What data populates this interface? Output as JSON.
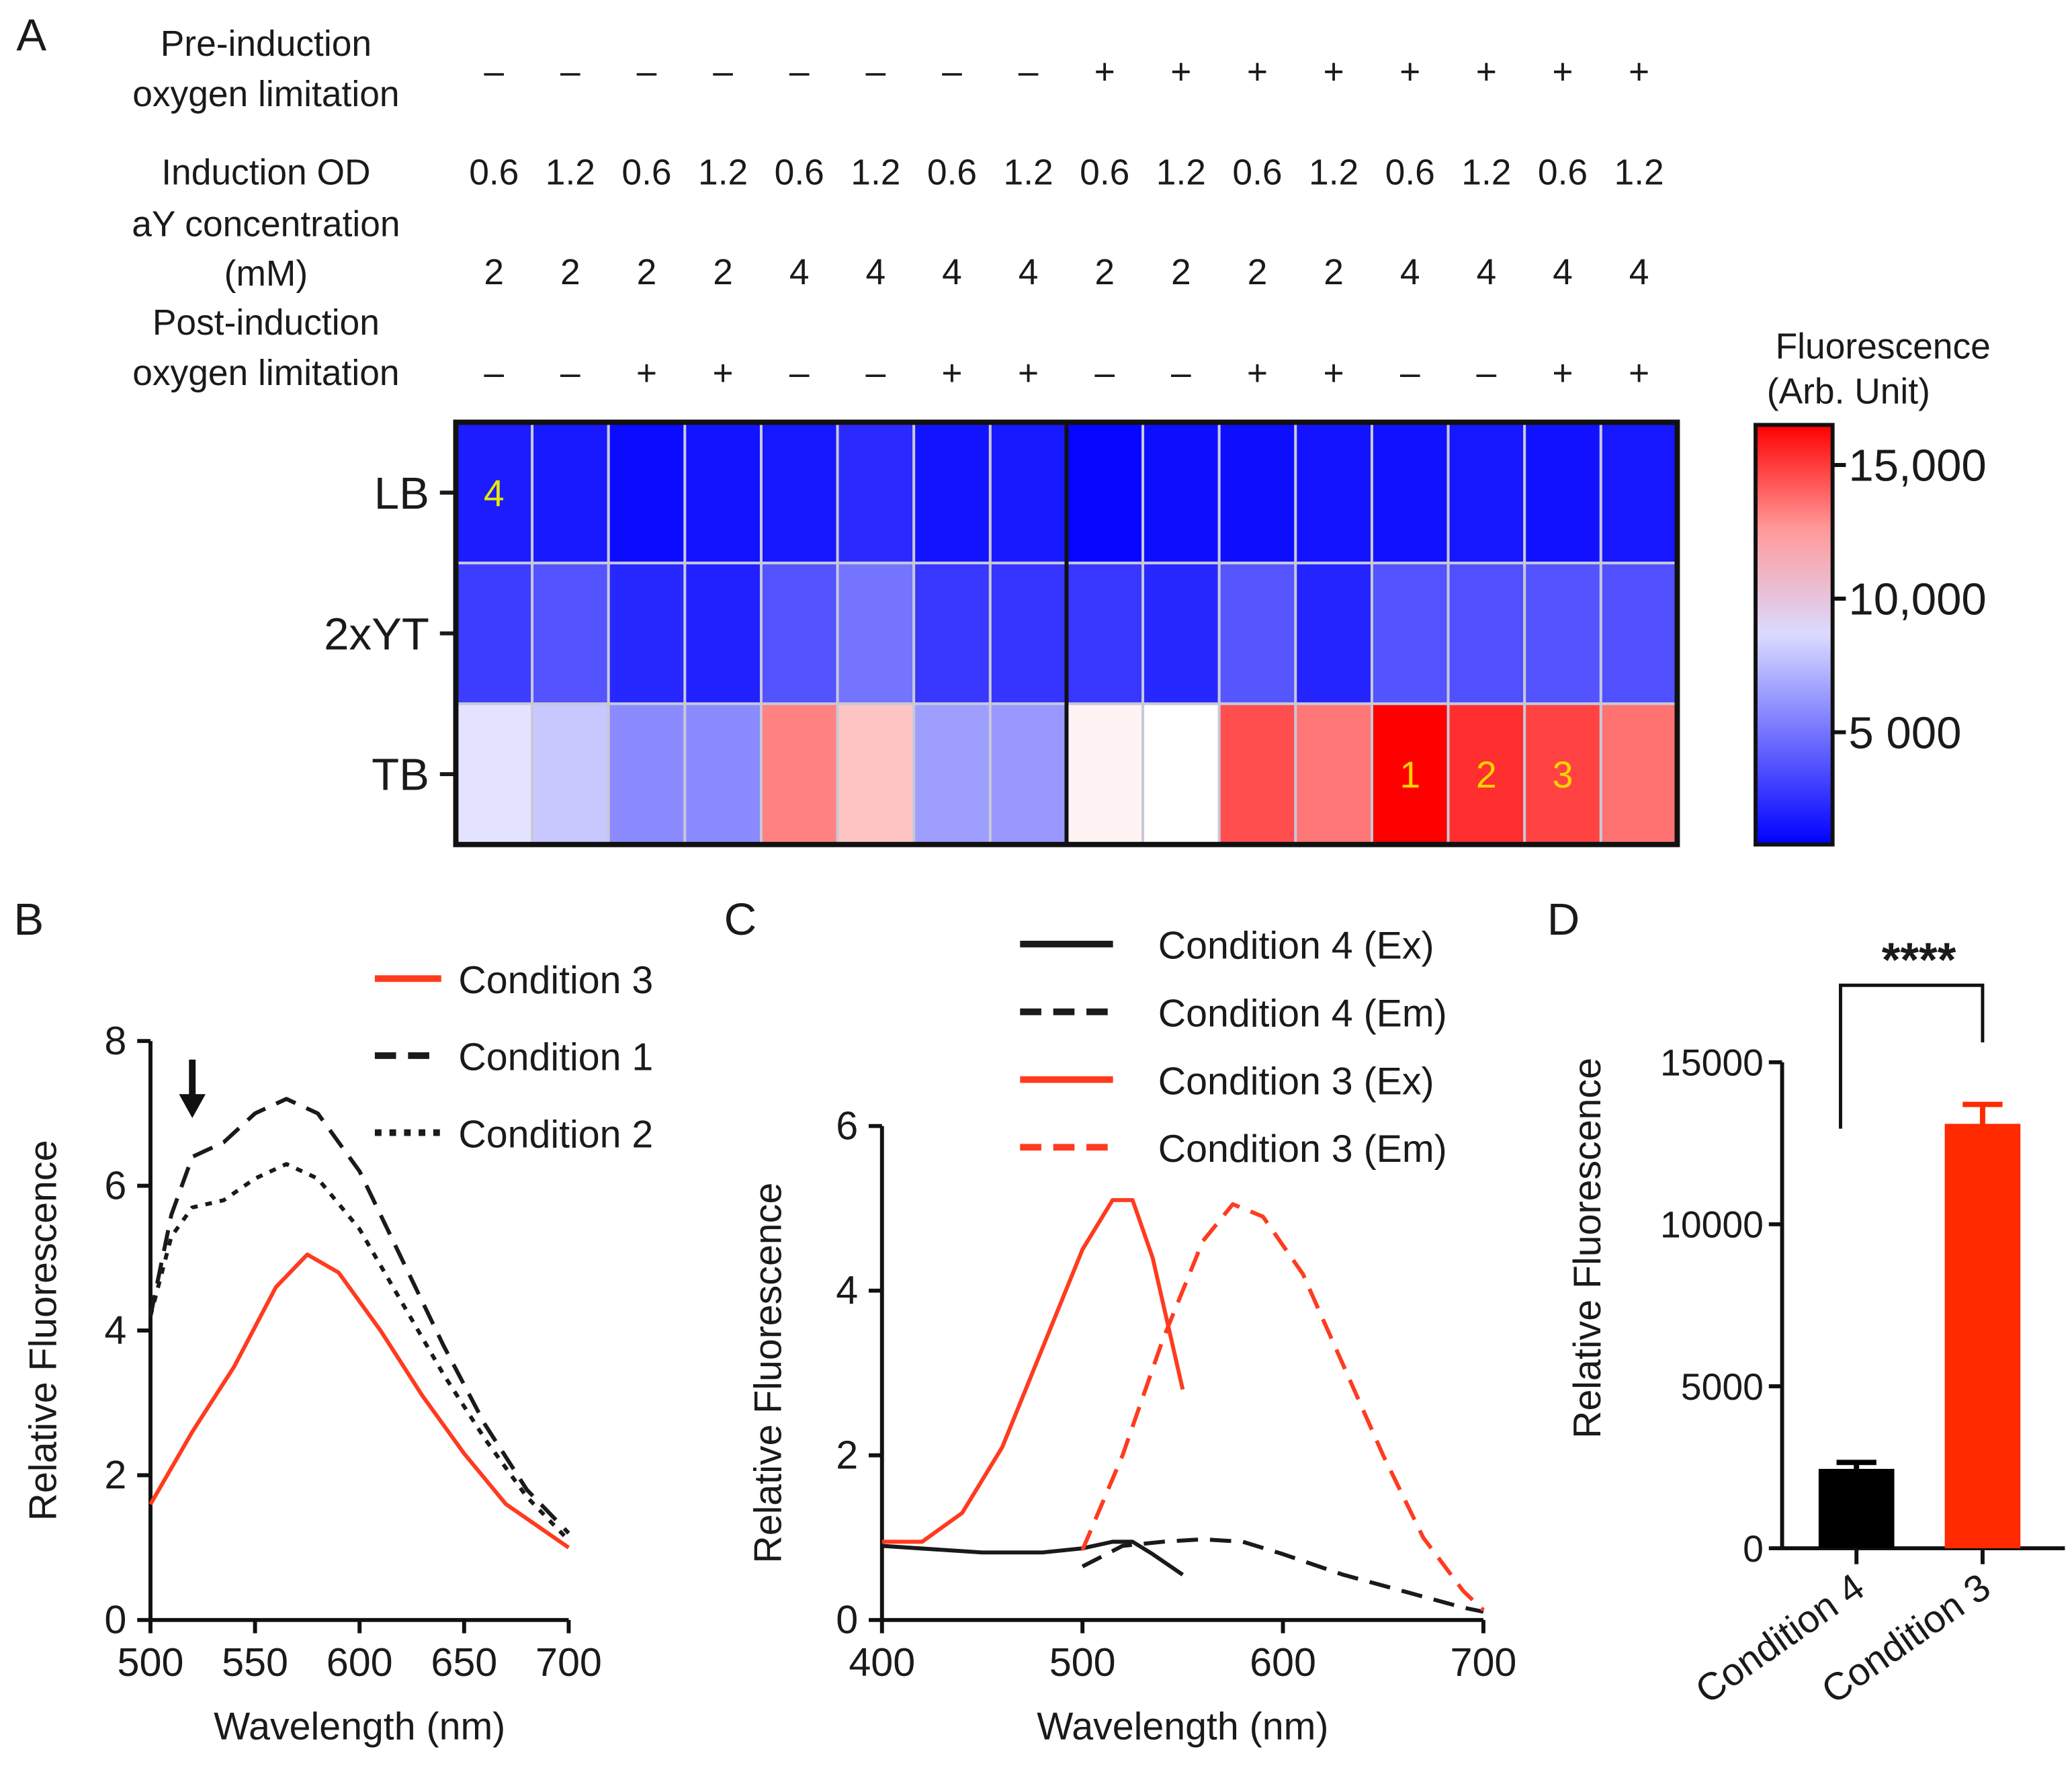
{
  "chart_data": [
    {
      "panel": "A",
      "type": "heatmap",
      "row_header_labels": {
        "pre_induction": [
          "Pre-induction",
          "oxygen limitation"
        ],
        "induction_od": "Induction OD",
        "ay_conc": [
          "aY concentration",
          "(mM)"
        ],
        "post_induction": [
          "Post-induction",
          "oxygen limitation"
        ]
      },
      "pre_induction": [
        "–",
        "–",
        "–",
        "–",
        "–",
        "–",
        "–",
        "–",
        "+",
        "+",
        "+",
        "+",
        "+",
        "+",
        "+",
        "+"
      ],
      "induction_od": [
        "0.6",
        "1.2",
        "0.6",
        "1.2",
        "0.6",
        "1.2",
        "0.6",
        "1.2",
        "0.6",
        "1.2",
        "0.6",
        "1.2",
        "0.6",
        "1.2",
        "0.6",
        "1.2"
      ],
      "ay_conc": [
        "2",
        "2",
        "2",
        "2",
        "4",
        "4",
        "4",
        "4",
        "2",
        "2",
        "2",
        "2",
        "4",
        "4",
        "4",
        "4"
      ],
      "post_induction": [
        "–",
        "–",
        "+",
        "+",
        "–",
        "–",
        "+",
        "+",
        "–",
        "–",
        "+",
        "+",
        "–",
        "–",
        "+",
        "+"
      ],
      "rows": [
        "LB",
        "2xYT",
        "TB"
      ],
      "values": [
        [
          1800,
          1700,
          1200,
          1500,
          1600,
          2300,
          1500,
          1700,
          1000,
          1300,
          1300,
          1500,
          1400,
          1600,
          1400,
          1600
        ],
        [
          3000,
          3800,
          2200,
          2000,
          3800,
          5000,
          2800,
          2700,
          2800,
          2200,
          3900,
          2100,
          3800,
          3700,
          3800,
          3700
        ],
        [
          9000,
          8000,
          5800,
          5800,
          13200,
          11500,
          6500,
          6300,
          10300,
          10000,
          14500,
          13500,
          16500,
          15300,
          14800,
          13600
        ]
      ],
      "annotations": [
        {
          "row": 0,
          "col": 0,
          "text": "4",
          "color": "#e8e800"
        },
        {
          "row": 2,
          "col": 12,
          "text": "1",
          "color": "#ffd400"
        },
        {
          "row": 2,
          "col": 13,
          "text": "2",
          "color": "#ffd400"
        },
        {
          "row": 2,
          "col": 14,
          "text": "3",
          "color": "#ffd400"
        }
      ],
      "colorbar": {
        "title": [
          "Fluorescence",
          "(Arb. Unit)"
        ],
        "ticks": [
          5000,
          10000,
          15000
        ],
        "tick_labels": [
          "5 000",
          "10,000",
          "15,000"
        ],
        "range": [
          800,
          16500
        ],
        "colors": {
          "low": "#0000ff",
          "mid": "#ffffff",
          "high": "#ff0000"
        },
        "mid_value": 10000
      }
    },
    {
      "panel": "B",
      "type": "line",
      "xlabel": "Wavelength (nm)",
      "ylabel": "Relative Fluorescence",
      "xlim": [
        500,
        700
      ],
      "ylim": [
        0,
        8
      ],
      "xticks": [
        500,
        550,
        600,
        650,
        700
      ],
      "yticks": [
        0,
        2,
        4,
        6,
        8
      ],
      "arrow_at_x": 520,
      "series": [
        {
          "name": "Condition 3",
          "color": "#ff3b1f",
          "style": "solid",
          "x": [
            500,
            520,
            540,
            560,
            575,
            590,
            610,
            630,
            650,
            670,
            700
          ],
          "y": [
            1.6,
            2.6,
            3.5,
            4.6,
            5.05,
            4.8,
            4.0,
            3.1,
            2.3,
            1.6,
            1.0
          ]
        },
        {
          "name": "Condition 1",
          "color": "#1a1a1a",
          "style": "dashed",
          "x": [
            500,
            510,
            520,
            535,
            550,
            565,
            580,
            600,
            620,
            640,
            660,
            680,
            700
          ],
          "y": [
            4.2,
            5.6,
            6.4,
            6.6,
            7.0,
            7.2,
            7.0,
            6.2,
            5.0,
            3.8,
            2.7,
            1.8,
            1.2
          ]
        },
        {
          "name": "Condition 2",
          "color": "#1a1a1a",
          "style": "dotted",
          "x": [
            500,
            510,
            520,
            535,
            550,
            565,
            580,
            600,
            620,
            640,
            660,
            680,
            700
          ],
          "y": [
            4.2,
            5.3,
            5.7,
            5.8,
            6.1,
            6.3,
            6.1,
            5.4,
            4.4,
            3.4,
            2.5,
            1.7,
            1.1
          ]
        }
      ]
    },
    {
      "panel": "C",
      "type": "line",
      "xlabel": "Wavelength (nm)",
      "ylabel": "Relative Fluorescence",
      "xlim": [
        400,
        700
      ],
      "ylim": [
        0,
        6
      ],
      "xticks": [
        400,
        500,
        600,
        700
      ],
      "yticks": [
        0,
        2,
        4,
        6
      ],
      "series": [
        {
          "name": "Condition 4 (Ex)",
          "color": "#1a1a1a",
          "style": "solid",
          "x": [
            400,
            450,
            480,
            500,
            515,
            525,
            535,
            550
          ],
          "y": [
            0.9,
            0.82,
            0.82,
            0.87,
            0.95,
            0.95,
            0.8,
            0.55
          ]
        },
        {
          "name": "Condition 4 (Em)",
          "color": "#1a1a1a",
          "style": "dashed",
          "x": [
            500,
            520,
            540,
            560,
            580,
            600,
            630,
            660,
            690,
            700
          ],
          "y": [
            0.65,
            0.9,
            0.95,
            0.98,
            0.95,
            0.8,
            0.55,
            0.35,
            0.15,
            0.1
          ]
        },
        {
          "name": "Condition 3 (Ex)",
          "color": "#ff3b1f",
          "style": "solid",
          "x": [
            400,
            420,
            440,
            460,
            480,
            500,
            515,
            525,
            535,
            550
          ],
          "y": [
            0.95,
            0.95,
            1.3,
            2.1,
            3.3,
            4.5,
            5.1,
            5.1,
            4.4,
            2.8
          ]
        },
        {
          "name": "Condition 3 (Em)",
          "color": "#ff3b1f",
          "style": "dashed",
          "x": [
            500,
            520,
            540,
            560,
            575,
            590,
            610,
            630,
            650,
            670,
            690,
            700
          ],
          "y": [
            0.85,
            2.0,
            3.4,
            4.6,
            5.05,
            4.9,
            4.2,
            3.1,
            2.0,
            1.0,
            0.35,
            0.12
          ]
        }
      ]
    },
    {
      "panel": "D",
      "type": "bar",
      "ylabel": "Relative Fluorescence",
      "ylim": [
        0,
        15000
      ],
      "yticks": [
        0,
        5000,
        10000,
        15000
      ],
      "categories": [
        "Condition 4",
        "Condition 3"
      ],
      "values": [
        2450,
        13100
      ],
      "errors": [
        200,
        600
      ],
      "colors": [
        "#000000",
        "#ff2a00"
      ],
      "significance": "****"
    }
  ]
}
